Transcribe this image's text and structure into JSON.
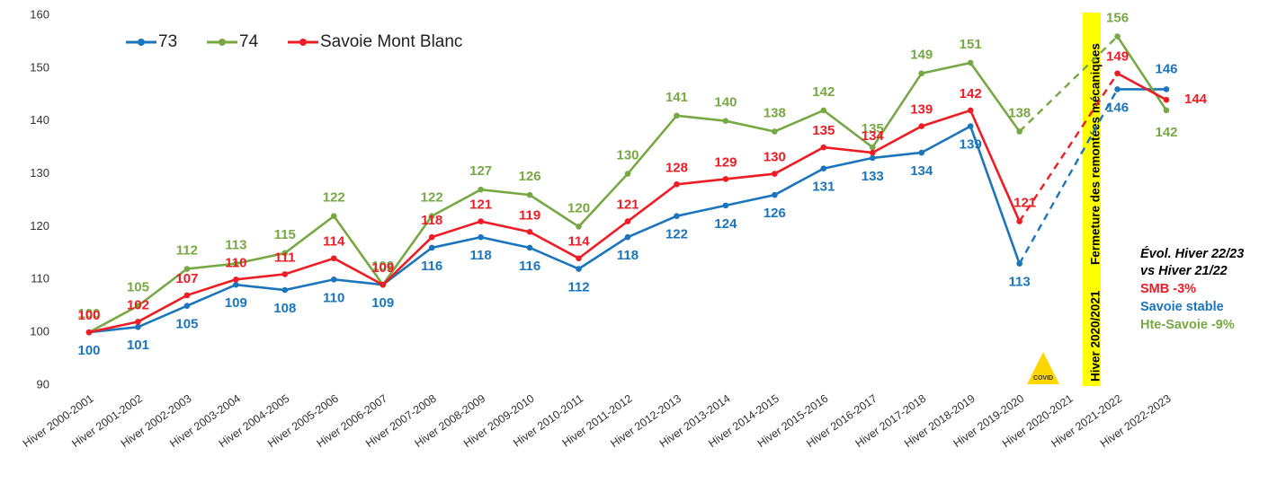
{
  "chart_data": {
    "type": "line",
    "categories": [
      "Hiver 2000-2001",
      "Hiver 2001-2002",
      "Hiver 2002-2003",
      "Hiver 2003-2004",
      "Hiver 2004-2005",
      "Hiver 2005-2006",
      "Hiver 2006-2007",
      "Hiver 2007-2008",
      "Hiver 2008-2009",
      "Hiver 2009-2010",
      "Hiver 2010-2011",
      "Hiver 2011-2012",
      "Hiver 2012-2013",
      "Hiver 2013-2014",
      "Hiver 2014-2015",
      "Hiver 2015-2016",
      "Hiver 2016-2017",
      "Hiver 2017-2018",
      "Hiver 2018-2019",
      "Hiver 2019-2020",
      "Hiver 2020-2021",
      "Hiver 2021-2022",
      "Hiver 2022-2023"
    ],
    "series": [
      {
        "name": "73",
        "color": "#1b75bc",
        "values": [
          100,
          101,
          105,
          109,
          108,
          110,
          109,
          116,
          118,
          116,
          112,
          118,
          122,
          124,
          126,
          131,
          133,
          134,
          139,
          113,
          null,
          146,
          146
        ]
      },
      {
        "name": "74",
        "color": "#77a844",
        "values": [
          100,
          105,
          112,
          113,
          115,
          122,
          109,
          122,
          127,
          126,
          120,
          130,
          141,
          140,
          138,
          142,
          135,
          149,
          151,
          138,
          null,
          156,
          142
        ]
      },
      {
        "name": "Savoie Mont Blanc",
        "color": "#ee1c24",
        "values": [
          100,
          102,
          107,
          110,
          111,
          114,
          109,
          118,
          121,
          119,
          114,
          121,
          128,
          129,
          130,
          135,
          134,
          139,
          142,
          121,
          null,
          149,
          144
        ]
      }
    ],
    "ylim": [
      90,
      160
    ],
    "yticks": [
      90,
      100,
      110,
      120,
      130,
      140,
      150,
      160
    ],
    "grid": false,
    "legend": "top-left",
    "annotations": {
      "closure": [
        "Hiver 2020/2021",
        "Fermeture des remontées mécaniques"
      ],
      "covid": "COVID",
      "note_title": [
        "Évol. Hiver 22/23",
        "vs Hiver 21/22"
      ],
      "note_lines": [
        "SMB -3%",
        "Savoie stable",
        "Hte-Savoie -9%"
      ]
    }
  }
}
